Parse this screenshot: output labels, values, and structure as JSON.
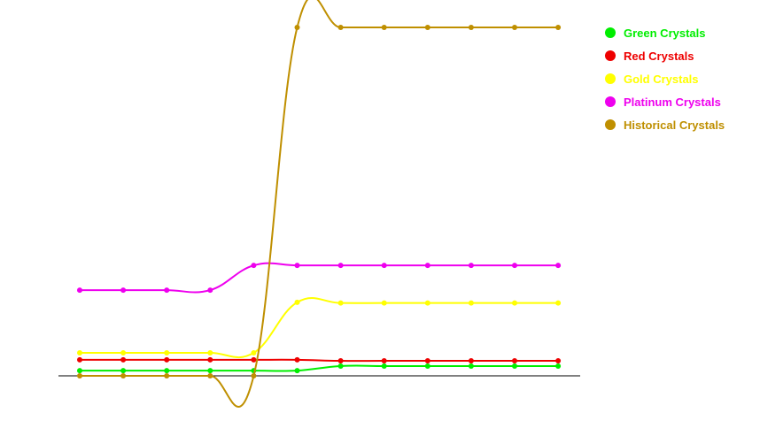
{
  "chart_data": {
    "type": "line",
    "title": "",
    "xlabel": "",
    "ylabel": "",
    "x": [
      1,
      2,
      3,
      4,
      5,
      6,
      7,
      8,
      9,
      10,
      11,
      12
    ],
    "ylim": [
      0,
      100
    ],
    "grid": false,
    "legend_position": "top-right",
    "series": [
      {
        "name": "Green Crystals",
        "color": "#00ee00",
        "values": [
          1.5,
          1.5,
          1.5,
          1.5,
          1.5,
          1.5,
          2.8,
          2.8,
          2.8,
          2.8,
          2.8,
          2.8
        ]
      },
      {
        "name": "Red Crystals",
        "color": "#ee0000",
        "values": [
          4.6,
          4.6,
          4.6,
          4.6,
          4.6,
          4.6,
          4.3,
          4.3,
          4.3,
          4.3,
          4.3,
          4.3
        ]
      },
      {
        "name": "Gold Crystals",
        "color": "#ffff00",
        "values": [
          6.6,
          6.6,
          6.6,
          6.6,
          6.6,
          21.1,
          20.9,
          20.9,
          20.9,
          20.9,
          20.9,
          20.9
        ]
      },
      {
        "name": "Platinum Crystals",
        "color": "#ee00ee",
        "values": [
          24.6,
          24.6,
          24.6,
          24.6,
          31.7,
          31.7,
          31.7,
          31.7,
          31.7,
          31.7,
          31.7,
          31.7
        ]
      },
      {
        "name": "Historical Crystals",
        "color": "#bf8f00",
        "values": [
          0,
          0,
          0,
          0,
          0,
          100,
          100,
          100,
          100,
          100,
          100,
          100
        ]
      }
    ]
  }
}
